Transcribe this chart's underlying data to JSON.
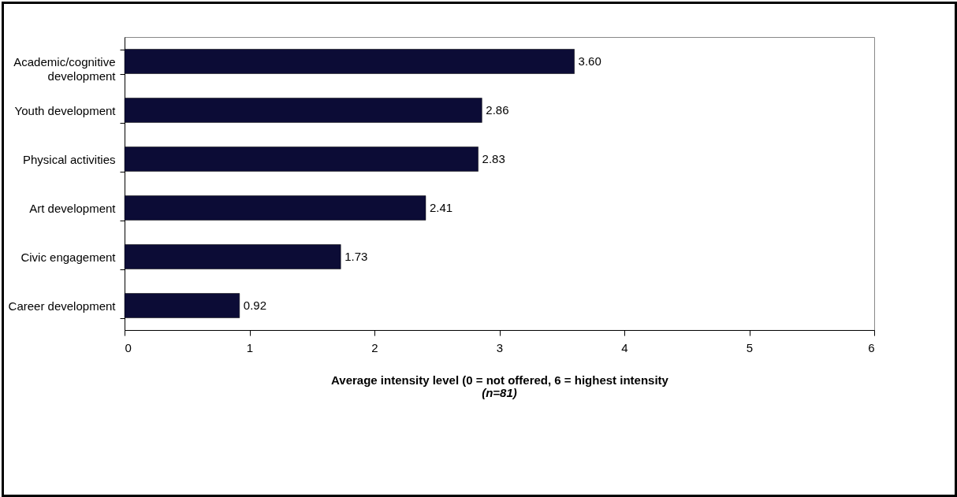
{
  "chart_data": {
    "type": "bar",
    "orientation": "horizontal",
    "categories": [
      "Academic/cognitive development",
      "Youth development",
      "Physical activities",
      "Art development",
      "Civic engagement",
      "Career development"
    ],
    "values": [
      3.6,
      2.86,
      2.83,
      2.41,
      1.73,
      0.92
    ],
    "value_labels": [
      "3.60",
      "2.86",
      "2.83",
      "2.41",
      "1.73",
      "0.92"
    ],
    "color": "#0c0c36",
    "xlim": [
      0,
      6
    ],
    "xticks": [
      0,
      1,
      2,
      3,
      4,
      5,
      6
    ],
    "xlabel": "Average intensity level (0 = not offered, 6 = highest intensity",
    "annotations": [
      "(n=81)"
    ],
    "grid": false
  }
}
